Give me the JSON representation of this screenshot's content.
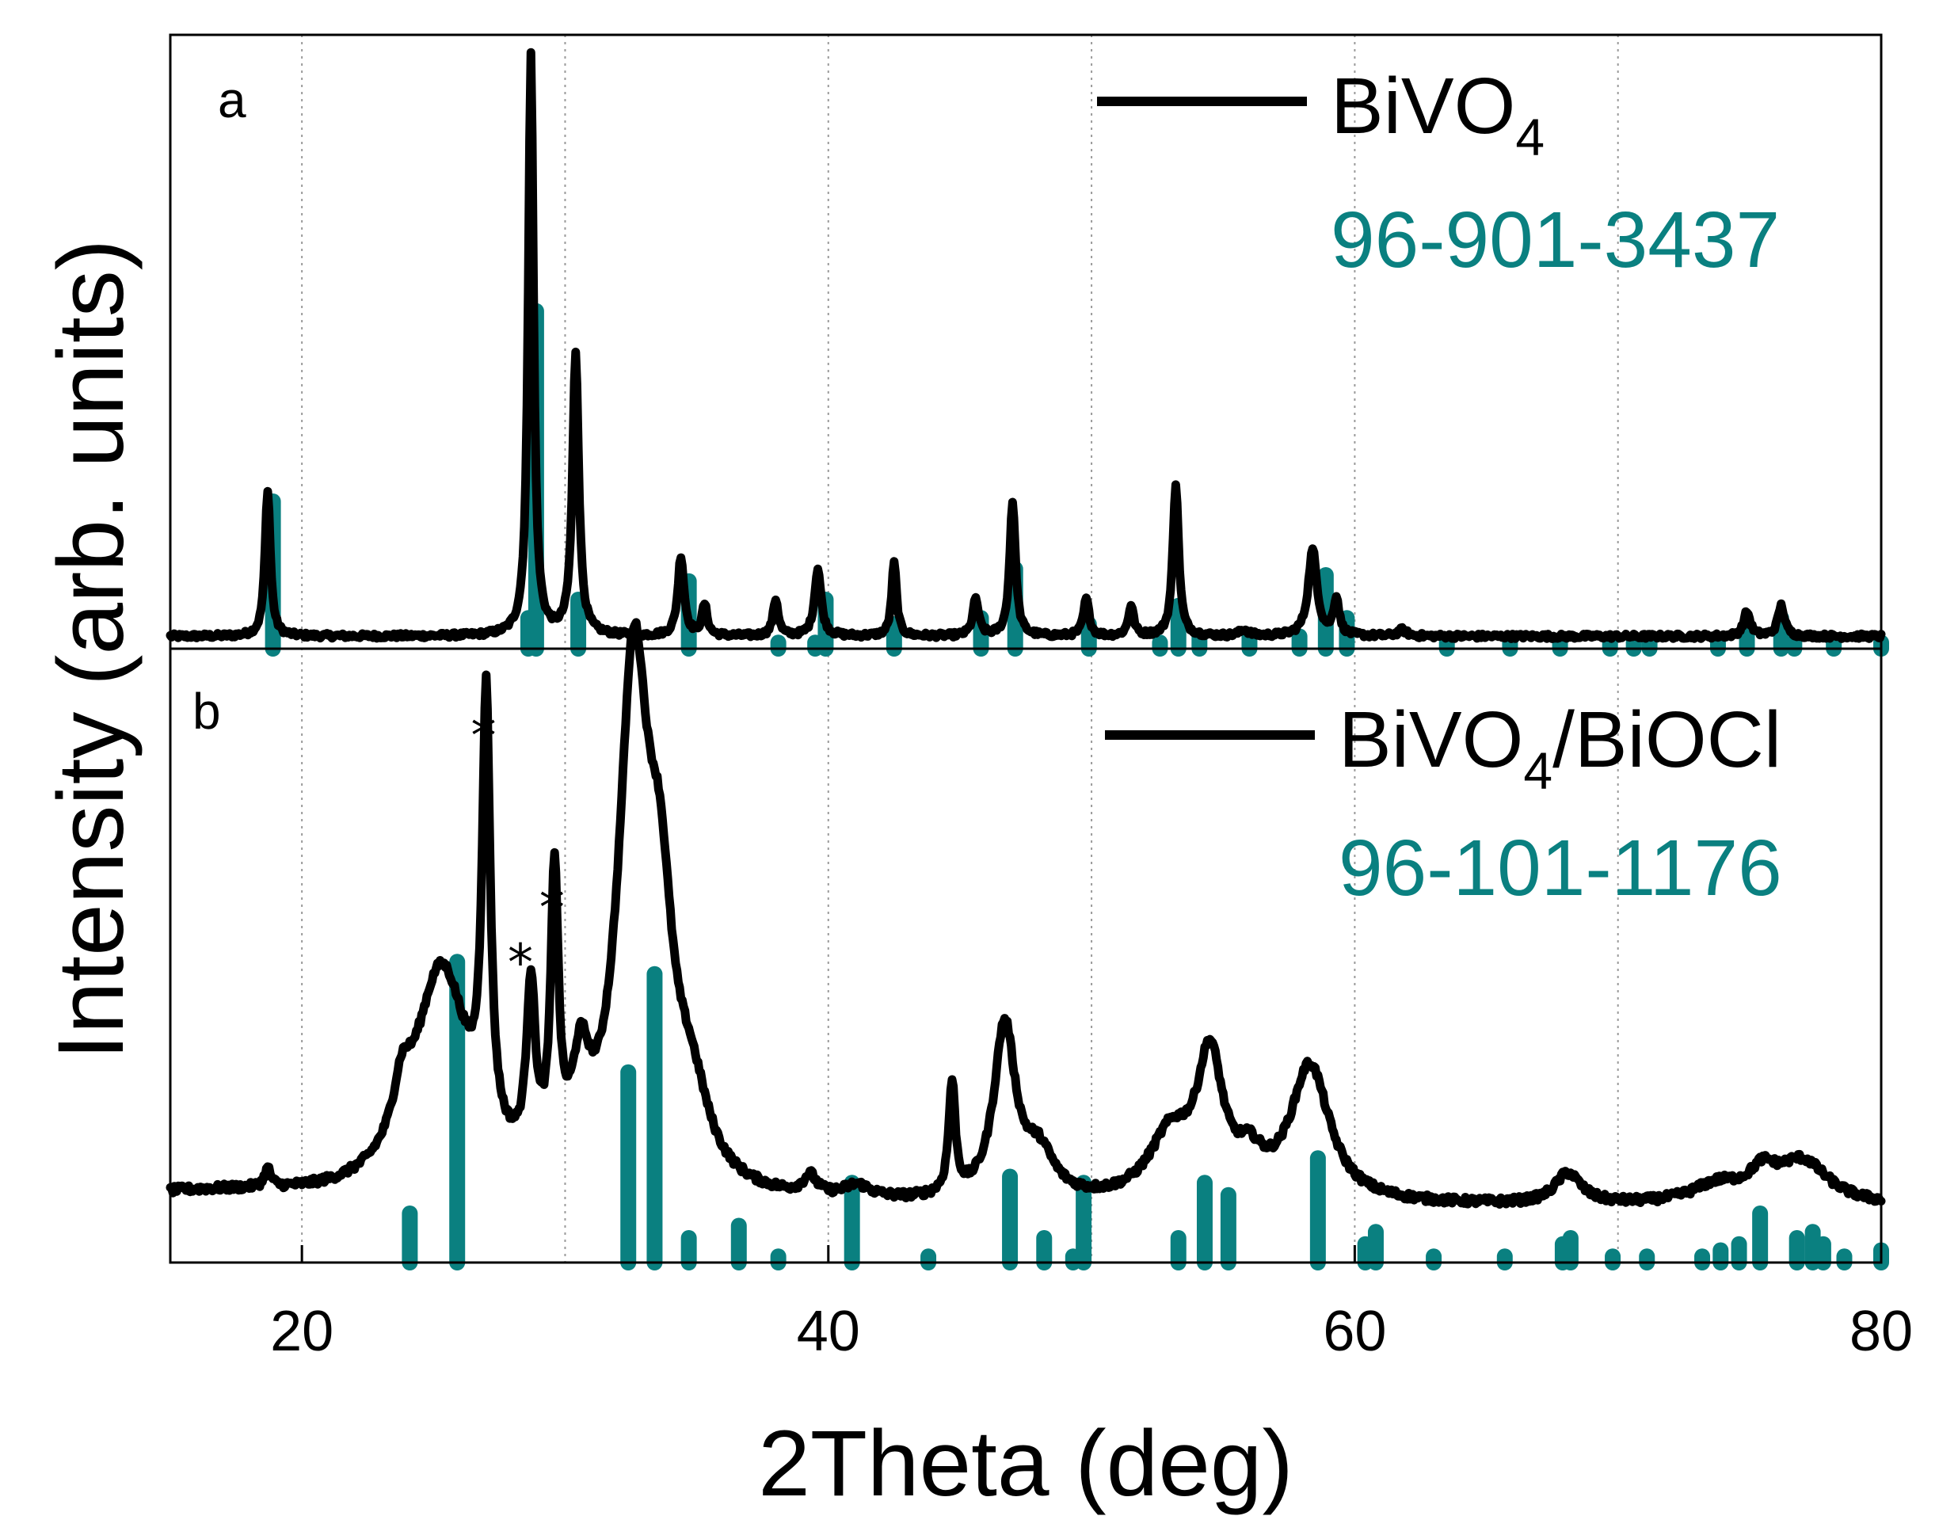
{
  "chart_data": {
    "type": "line",
    "xlabel": "2Theta (deg)",
    "ylabel": "Intensity (arb. units)",
    "xlim": [
      15,
      80
    ],
    "xticks": [
      20,
      40,
      60,
      80
    ],
    "colors": {
      "pattern": "#000000",
      "reference": "#0a8080",
      "grid": "#9a9a9a"
    },
    "panels": [
      {
        "label": "a",
        "series_name": "BiVO",
        "series_sub": "4",
        "series_suffix": "",
        "reference_code": "96-901-3437",
        "baseline": 0.02,
        "noise": 0.004,
        "peaks": [
          [
            18.7,
            0.24,
            0.12
          ],
          [
            28.7,
            0.95,
            0.12
          ],
          [
            30.4,
            0.46,
            0.14
          ],
          [
            34.4,
            0.13,
            0.14
          ],
          [
            35.3,
            0.05,
            0.12
          ],
          [
            38.0,
            0.06,
            0.12
          ],
          [
            39.6,
            0.11,
            0.15
          ],
          [
            42.5,
            0.12,
            0.11
          ],
          [
            45.6,
            0.06,
            0.13
          ],
          [
            47.0,
            0.22,
            0.13
          ],
          [
            49.8,
            0.06,
            0.13
          ],
          [
            51.5,
            0.05,
            0.12
          ],
          [
            53.2,
            0.25,
            0.13
          ],
          [
            58.4,
            0.14,
            0.2
          ],
          [
            59.3,
            0.06,
            0.13
          ],
          [
            74.9,
            0.04,
            0.15
          ],
          [
            76.2,
            0.05,
            0.15
          ],
          [
            61.8,
            0.01,
            0.2
          ],
          [
            55.8,
            0.01,
            0.2
          ]
        ],
        "sticks": [
          [
            18.9,
            0.24
          ],
          [
            28.9,
            0.55
          ],
          [
            28.6,
            0.05
          ],
          [
            30.5,
            0.08
          ],
          [
            34.7,
            0.11
          ],
          [
            38.1,
            0.01
          ],
          [
            39.5,
            0.01
          ],
          [
            39.9,
            0.08
          ],
          [
            42.5,
            0.04
          ],
          [
            45.8,
            0.05
          ],
          [
            47.1,
            0.13
          ],
          [
            49.9,
            0.04
          ],
          [
            52.6,
            0.01
          ],
          [
            53.3,
            0.07
          ],
          [
            54.1,
            0.02
          ],
          [
            56.0,
            0.02
          ],
          [
            57.9,
            0.02
          ],
          [
            58.9,
            0.12
          ],
          [
            59.7,
            0.05
          ],
          [
            63.5,
            0.01
          ],
          [
            65.9,
            0.01
          ],
          [
            67.8,
            0.01
          ],
          [
            69.7,
            0.01
          ],
          [
            70.6,
            0.01
          ],
          [
            71.2,
            0.01
          ],
          [
            73.8,
            0.01
          ],
          [
            74.9,
            0.03
          ],
          [
            76.2,
            0.05
          ],
          [
            76.7,
            0.01
          ],
          [
            78.2,
            0.01
          ],
          [
            80.0,
            0.01
          ]
        ]
      },
      {
        "label": "b",
        "series_name": "BiVO",
        "series_sub": "4",
        "series_suffix": "/BiOCl",
        "reference_code": "96-101-1176",
        "baseline": 0.09,
        "noise": 0.006,
        "peaks": [
          [
            25.3,
            0.37,
            1.3
          ],
          [
            27.0,
            0.7,
            0.18
          ],
          [
            28.7,
            0.28,
            0.2
          ],
          [
            29.6,
            0.46,
            0.17
          ],
          [
            30.6,
            0.15,
            0.4
          ],
          [
            32.6,
            0.82,
            0.7
          ],
          [
            33.6,
            0.35,
            0.6
          ],
          [
            34.8,
            0.12,
            0.8
          ],
          [
            23.8,
            0.08,
            0.4
          ],
          [
            18.7,
            0.03,
            0.15
          ],
          [
            39.3,
            0.03,
            0.3
          ],
          [
            41.1,
            0.02,
            0.6
          ],
          [
            44.7,
            0.18,
            0.15
          ],
          [
            46.7,
            0.28,
            0.5
          ],
          [
            48.0,
            0.07,
            0.7
          ],
          [
            53.0,
            0.1,
            1.0
          ],
          [
            54.5,
            0.22,
            0.6
          ],
          [
            56.0,
            0.05,
            0.6
          ],
          [
            58.3,
            0.22,
            0.9
          ],
          [
            68.1,
            0.05,
            0.6
          ],
          [
            73.8,
            0.03,
            1.2
          ],
          [
            77.0,
            0.07,
            1.2
          ],
          [
            75.5,
            0.04,
            0.6
          ]
        ],
        "sticks": [
          [
            24.1,
            0.08
          ],
          [
            25.9,
            0.49
          ],
          [
            32.4,
            0.31
          ],
          [
            33.4,
            0.47
          ],
          [
            34.7,
            0.04
          ],
          [
            36.6,
            0.06
          ],
          [
            38.1,
            0.01
          ],
          [
            40.9,
            0.13
          ],
          [
            43.8,
            0.01
          ],
          [
            46.9,
            0.14
          ],
          [
            48.2,
            0.04
          ],
          [
            49.7,
            0.13
          ],
          [
            49.3,
            0.01
          ],
          [
            53.3,
            0.04
          ],
          [
            54.3,
            0.13
          ],
          [
            55.2,
            0.11
          ],
          [
            58.6,
            0.17
          ],
          [
            60.4,
            0.03
          ],
          [
            60.8,
            0.05
          ],
          [
            63.0,
            0.01
          ],
          [
            65.7,
            0.01
          ],
          [
            67.9,
            0.03
          ],
          [
            68.2,
            0.04
          ],
          [
            69.8,
            0.01
          ],
          [
            71.1,
            0.01
          ],
          [
            73.2,
            0.01
          ],
          [
            73.9,
            0.02
          ],
          [
            74.6,
            0.03
          ],
          [
            75.4,
            0.08
          ],
          [
            76.8,
            0.04
          ],
          [
            77.4,
            0.05
          ],
          [
            77.8,
            0.03
          ],
          [
            78.6,
            0.01
          ],
          [
            80.0,
            0.02
          ]
        ],
        "annotations": [
          {
            "text": "*",
            "x": 26.9,
            "y": 0.83
          },
          {
            "text": "*",
            "x": 29.5,
            "y": 0.55
          },
          {
            "text": "*",
            "x": 28.3,
            "y": 0.46
          }
        ]
      }
    ]
  }
}
